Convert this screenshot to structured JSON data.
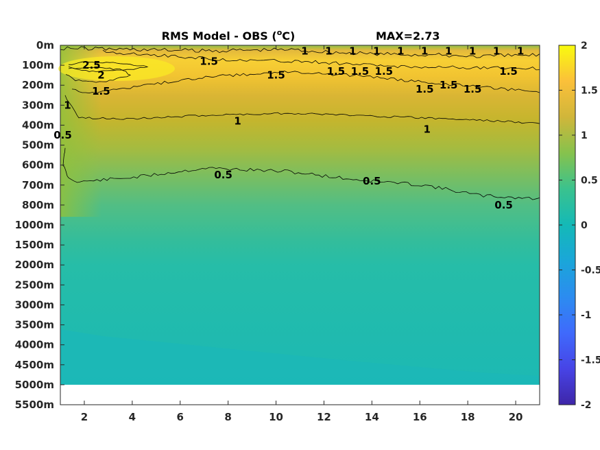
{
  "chart_data": {
    "type": "heatmap",
    "title": "RMS Model - OBS (",
    "title_sup": "o",
    "title_unit": "C)",
    "annotation": "MAX=2.73",
    "x_ticks": [
      2,
      4,
      6,
      8,
      10,
      12,
      14,
      16,
      18,
      20
    ],
    "xlim": [
      1,
      21
    ],
    "y_ticks": [
      "0m",
      "100m",
      "200m",
      "300m",
      "400m",
      "500m",
      "600m",
      "700m",
      "800m",
      "1000m",
      "1500m",
      "2000m",
      "2500m",
      "3000m",
      "3500m",
      "4000m",
      "4500m",
      "5000m",
      "5500m"
    ],
    "colorbar": {
      "ticks": [
        "2",
        "1.5",
        "1",
        "0.5",
        "0",
        "-0.5",
        "-1",
        "-1.5",
        "-2"
      ],
      "range": [
        -2,
        2
      ],
      "colormap": "parula"
    },
    "contour_levels": [
      0.5,
      1,
      1.5,
      2,
      2.5
    ],
    "contour_labels": [
      {
        "text": "2.5",
        "x": 2.3,
        "depth": "100m"
      },
      {
        "text": "2",
        "x": 2.7,
        "depth": "150m"
      },
      {
        "text": "1.5",
        "x": 2.7,
        "depth": "230m"
      },
      {
        "text": "1.5",
        "x": 7.2,
        "depth": "80m"
      },
      {
        "text": "1.5",
        "x": 10.0,
        "depth": "150m"
      },
      {
        "text": "1",
        "x": 11.2,
        "depth": "30m"
      },
      {
        "text": "1",
        "x": 12.2,
        "depth": "30m"
      },
      {
        "text": "1",
        "x": 13.2,
        "depth": "30m"
      },
      {
        "text": "1",
        "x": 14.2,
        "depth": "30m"
      },
      {
        "text": "1",
        "x": 15.2,
        "depth": "30m"
      },
      {
        "text": "1",
        "x": 16.2,
        "depth": "30m"
      },
      {
        "text": "1",
        "x": 17.2,
        "depth": "30m"
      },
      {
        "text": "1",
        "x": 18.2,
        "depth": "30m"
      },
      {
        "text": "1",
        "x": 19.2,
        "depth": "30m"
      },
      {
        "text": "1",
        "x": 20.2,
        "depth": "30m"
      },
      {
        "text": "1.5",
        "x": 12.5,
        "depth": "130m"
      },
      {
        "text": "1.5",
        "x": 13.5,
        "depth": "130m"
      },
      {
        "text": "1.5",
        "x": 14.5,
        "depth": "130m"
      },
      {
        "text": "1.5",
        "x": 16.2,
        "depth": "220m"
      },
      {
        "text": "1.5",
        "x": 17.2,
        "depth": "200m"
      },
      {
        "text": "1.5",
        "x": 18.2,
        "depth": "220m"
      },
      {
        "text": "1.5",
        "x": 19.7,
        "depth": "130m"
      },
      {
        "text": "1",
        "x": 1.3,
        "depth": "300m"
      },
      {
        "text": "1",
        "x": 8.4,
        "depth": "380m"
      },
      {
        "text": "1",
        "x": 16.3,
        "depth": "420m"
      },
      {
        "text": "0.5",
        "x": 1.1,
        "depth": "450m"
      },
      {
        "text": "0.5",
        "x": 7.8,
        "depth": "650m"
      },
      {
        "text": "0.5",
        "x": 14.0,
        "depth": "680m"
      },
      {
        "text": "0.5",
        "x": 19.5,
        "depth": "800m"
      }
    ]
  }
}
